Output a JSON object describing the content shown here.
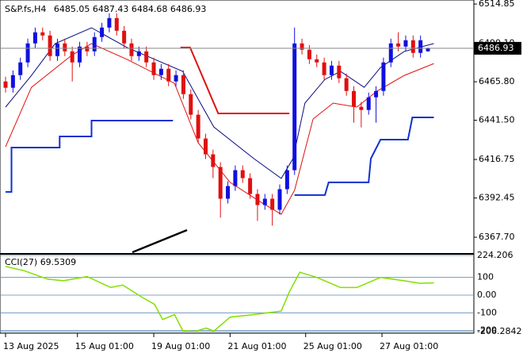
{
  "chart_data": [
    {
      "type": "candlestick",
      "title": "S&P.fs,H4",
      "open": [
        6466,
        6462,
        6470,
        6478,
        6490,
        6497,
        6495,
        6482,
        6490,
        6485,
        6478,
        6488,
        6485,
        6494,
        6500,
        6506,
        6498,
        6490,
        6482,
        6485,
        6478,
        6470,
        6474,
        6466,
        6470,
        6458,
        6445,
        6430,
        6420,
        6412,
        6392,
        6400,
        6410,
        6405,
        6395,
        6388,
        6392,
        6385,
        6398,
        6410,
        6490,
        6486,
        6480,
        6478,
        6470,
        6476,
        6468,
        6460,
        6450,
        6448,
        6456,
        6460,
        6478,
        6490,
        6488,
        6492,
        6484,
        6485.05
      ],
      "high": [
        6469,
        6473,
        6481,
        6493,
        6500,
        6500,
        6498,
        6493,
        6493,
        6488,
        6491,
        6491,
        6497,
        6503,
        6509,
        6509,
        6501,
        6493,
        6488,
        6488,
        6481,
        6477,
        6477,
        6473,
        6473,
        6461,
        6448,
        6433,
        6423,
        6415,
        6403,
        6413,
        6413,
        6408,
        6398,
        6395,
        6395,
        6401,
        6413,
        6500,
        6493,
        6489,
        6483,
        6481,
        6479,
        6479,
        6471,
        6463,
        6453,
        6459,
        6463,
        6481,
        6493,
        6497,
        6495,
        6495,
        6495,
        6487.43
      ],
      "low": [
        6459,
        6459,
        6467,
        6475,
        6487,
        6492,
        6479,
        6479,
        6482,
        6466,
        6475,
        6482,
        6482,
        6491,
        6497,
        6495,
        6487,
        6479,
        6479,
        6475,
        6467,
        6467,
        6463,
        6463,
        6455,
        6442,
        6427,
        6417,
        6405,
        6380,
        6389,
        6397,
        6402,
        6392,
        6378,
        6385,
        6375,
        6382,
        6395,
        6407,
        6483,
        6477,
        6475,
        6467,
        6467,
        6465,
        6457,
        6440,
        6437,
        6445,
        6440,
        6457,
        6475,
        6485,
        6485,
        6481,
        6481,
        6484.68
      ],
      "close": [
        6462,
        6470,
        6478,
        6490,
        6497,
        6495,
        6482,
        6490,
        6485,
        6478,
        6488,
        6485,
        6494,
        6500,
        6506,
        6498,
        6490,
        6482,
        6485,
        6478,
        6470,
        6474,
        6466,
        6470,
        6458,
        6445,
        6430,
        6420,
        6412,
        6392,
        6400,
        6410,
        6405,
        6395,
        6388,
        6392,
        6385,
        6398,
        6410,
        6490,
        6486,
        6480,
        6478,
        6470,
        6476,
        6468,
        6460,
        6450,
        6448,
        6456,
        6460,
        6478,
        6490,
        6488,
        6492,
        6484,
        6492,
        6486.93
      ],
      "up_color": "#1010e0",
      "down_color": "#e01010",
      "lines": [
        {
          "color": "#0a0a80",
          "width": 1,
          "x": [
            0,
            3.5,
            6.7,
            11.6,
            16.4,
            23.9,
            28.1,
            33.5,
            37.2,
            38.8,
            40.4,
            43.1,
            45.2,
            48.4,
            50.6,
            53.8,
            57.8
          ],
          "values": [
            6449.8,
            6469.8,
            6489.9,
            6499.9,
            6487.4,
            6472.4,
            6437.3,
            6417.3,
            6404.8,
            6417.3,
            6452.3,
            6467.3,
            6472.4,
            6462.3,
            6474.8,
            6484.9,
            6489.9
          ]
        },
        {
          "color": "#e01010",
          "width": 1,
          "x": [
            0,
            3.5,
            8.9,
            11.6,
            16.4,
            22.8,
            26,
            30.3,
            34.5,
            37.2,
            39,
            41.5,
            44.2,
            47.4,
            50.1,
            53.8,
            57.8
          ],
          "values": [
            6424.8,
            6462.3,
            6482.4,
            6489.9,
            6479.9,
            6464.8,
            6427.3,
            6402.3,
            6389.7,
            6382.2,
            6397.3,
            6442.3,
            6452.3,
            6449.8,
            6459.8,
            6469.8,
            6477.3
          ]
        },
        {
          "color": "#1030d0",
          "width": 2,
          "x": [
            0,
            0.8,
            0.8,
            2.5,
            6.7,
            7.3,
            7.3,
            10,
            11.6,
            11.6,
            22.6,
            31,
            39,
            43.1,
            43.6,
            49,
            49.3,
            50.6,
            54.3,
            54.9,
            57.8
          ],
          "values": [
            6396.3,
            6396.3,
            6424.3,
            6424.3,
            6424.3,
            6424.3,
            6431.3,
            6431.3,
            6431.3,
            6441.3,
            6441.3,
            null,
            6394.3,
            6394.3,
            6402.3,
            6402.3,
            6417.3,
            6429.3,
            6429.3,
            6443.3,
            6443.3
          ]
        },
        {
          "color": "#e01010",
          "width": 2,
          "x": [
            23.6,
            24.9,
            28.7,
            38.3
          ],
          "values": [
            6487.4,
            6487.4,
            6445.8,
            6445.8
          ]
        }
      ],
      "xlim": [
        -0.75,
        63.2
      ],
      "ylim": [
        6358.2,
        6517.4
      ],
      "yticks": [
        6514.85,
        {
          "value": 6490.1,
          "label": "6490.10"
        },
        {
          "value": 6465.8,
          "label": "6465.80"
        },
        {
          "value": 6441.5,
          "label": "6441.50"
        },
        6416.75,
        6392.45,
        {
          "value": 6367.7,
          "label": "6367.70"
        }
      ],
      "xticks": [
        {
          "value": 0,
          "label": "13 Aug 2025"
        },
        {
          "value": 9.7,
          "label": "15 Aug 01:00"
        },
        {
          "value": 20,
          "label": "19 Aug 01:00"
        },
        {
          "value": 30.3,
          "label": "21 Aug 01:00"
        },
        {
          "value": 40.5,
          "label": "25 Aug 01:00"
        },
        {
          "value": 50.8,
          "label": "27 Aug 01:00"
        }
      ]
    },
    {
      "type": "line",
      "title": "CCI(27)",
      "current_value": 69.5309,
      "color": "#80e000",
      "x": [
        0,
        2.5,
        5.7,
        7.8,
        11,
        14.2,
        15.8,
        18.5,
        20.1,
        21.2,
        22.8,
        23.9,
        25.5,
        27.1,
        28.1,
        30.3,
        33.5,
        37.2,
        38.3,
        39.7,
        42,
        45.2,
        47.4,
        50.6,
        53.8,
        55.9,
        57.8
      ],
      "values": [
        162,
        138,
        90,
        81,
        105,
        43,
        57,
        -14,
        -52,
        -138,
        -110,
        -200,
        -206,
        -186,
        -204,
        -124,
        -110,
        -90,
        19,
        129,
        100,
        43,
        43,
        100,
        81,
        67,
        69.5309
      ],
      "xlim": [
        -0.75,
        63.2
      ],
      "ylim": [
        -206.2842,
        224.206
      ],
      "yticks": [
        224.206,
        100,
        {
          "value": 0,
          "label": "0.00"
        },
        -100,
        -200,
        -206.2842
      ]
    }
  ]
}
